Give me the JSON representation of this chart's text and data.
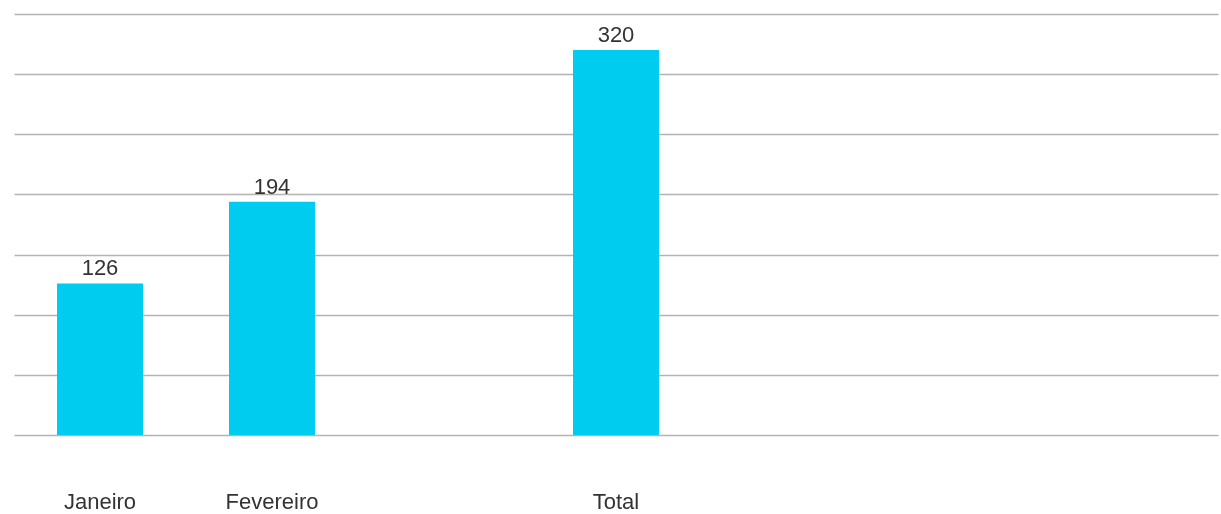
{
  "chart_data": {
    "type": "bar",
    "categories": [
      "Janeiro",
      "Fevereiro",
      null,
      "Total",
      null,
      null,
      null
    ],
    "values": [
      126,
      194,
      null,
      320,
      null,
      null,
      null
    ],
    "color": "#00ccf0",
    "data_labels": true,
    "ylim": [
      0,
      350
    ],
    "yticks": [
      {
        "value": 0,
        "label": null
      },
      {
        "value": 50,
        "label": null
      },
      {
        "value": 100,
        "label": null
      },
      {
        "value": 150,
        "label": null
      },
      {
        "value": 200,
        "label": null
      },
      {
        "value": 250,
        "label": null
      },
      {
        "value": 300,
        "label": null
      },
      {
        "value": 350,
        "label": null
      }
    ],
    "grid": "y",
    "tick_labels": "x"
  }
}
